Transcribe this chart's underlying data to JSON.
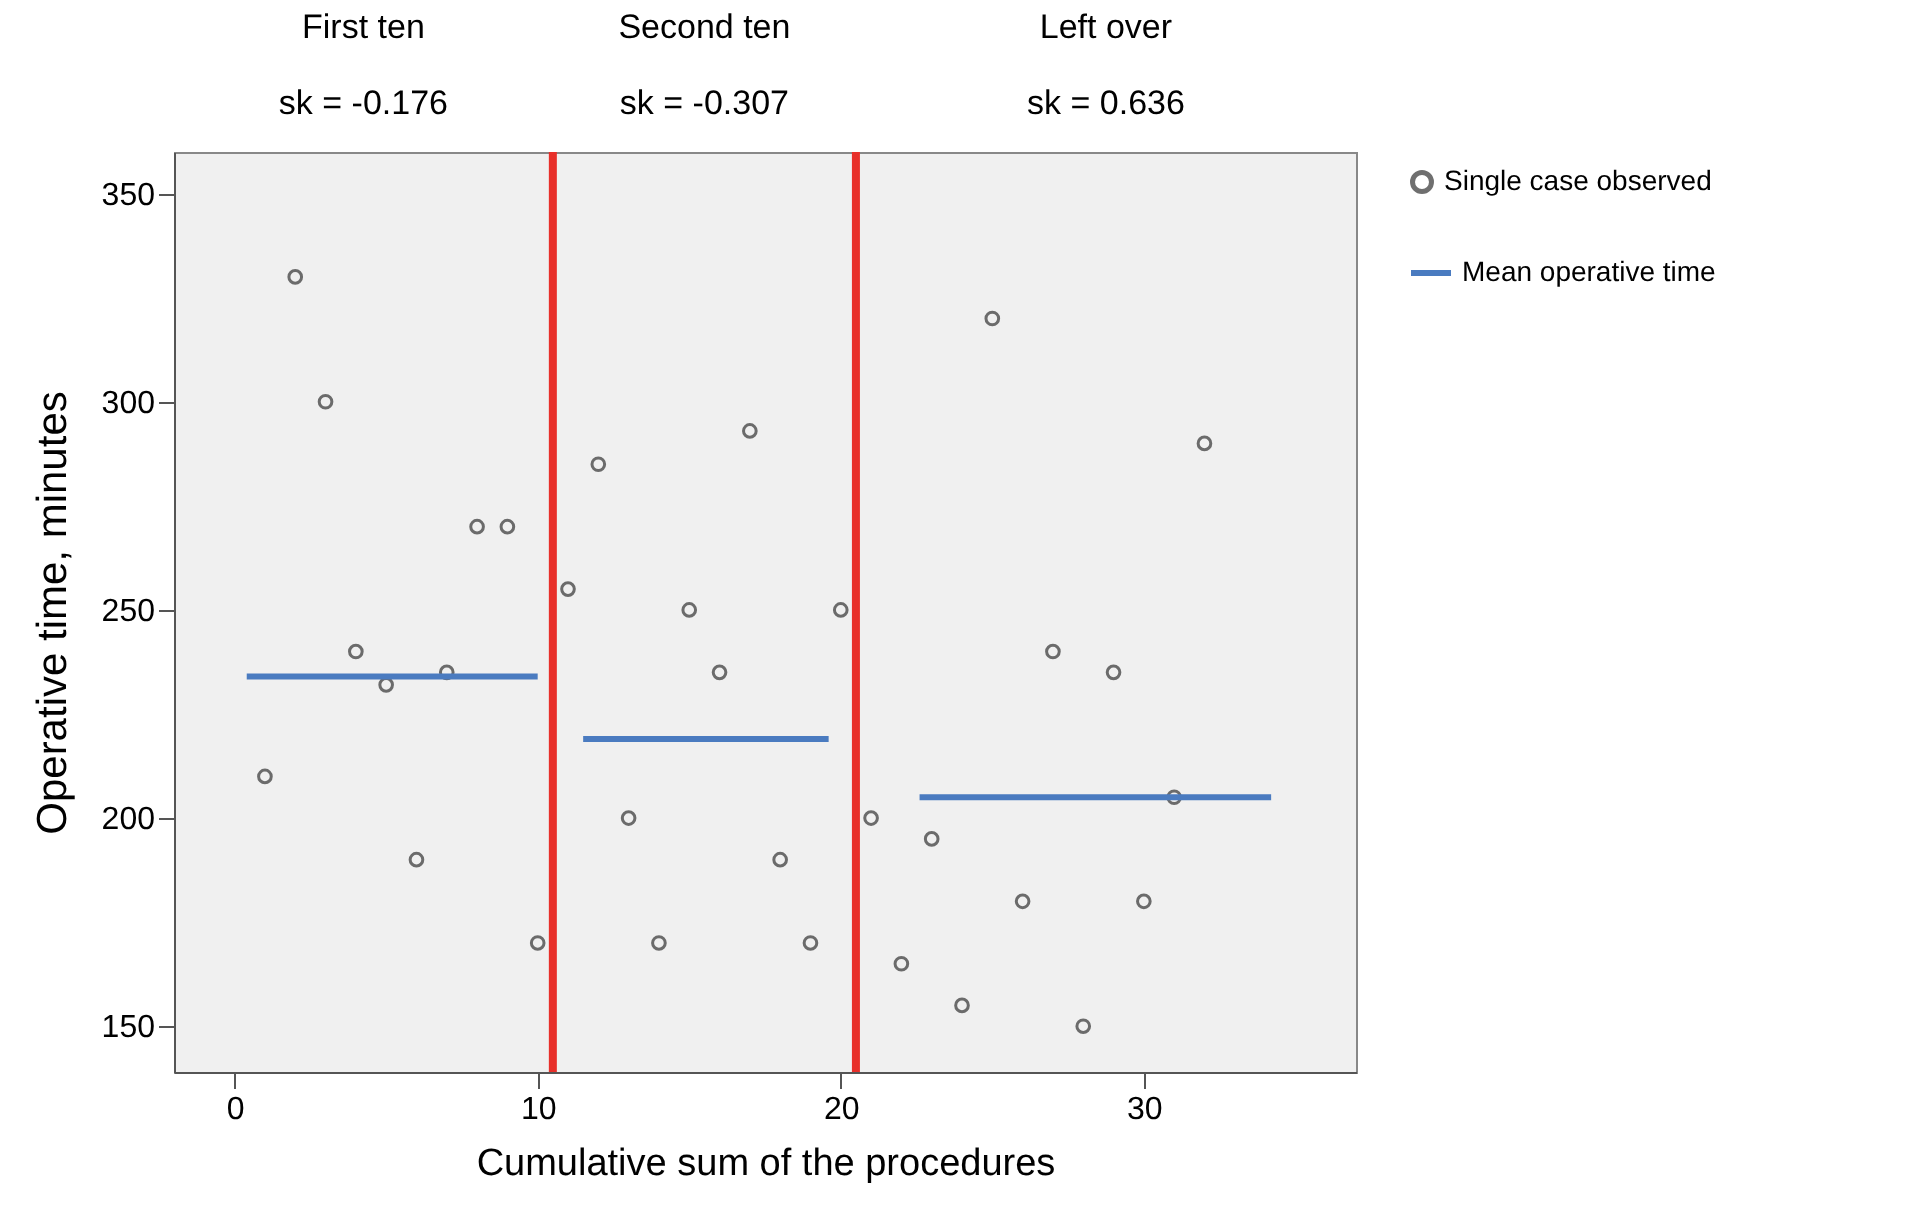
{
  "chart_data": {
    "type": "scatter",
    "xlabel": "Cumulative sum of the procedures",
    "ylabel": "Operative time,  minutes",
    "x": [
      1,
      2,
      3,
      4,
      5,
      6,
      7,
      8,
      9,
      10,
      11,
      12,
      13,
      14,
      15,
      16,
      17,
      18,
      19,
      20,
      21,
      22,
      23,
      24,
      25,
      26,
      27,
      28,
      29,
      30,
      31,
      32
    ],
    "series": [
      {
        "name": "Single case observed",
        "color": "#333333",
        "marker": "circle",
        "values": [
          210,
          330,
          300,
          240,
          232,
          190,
          235,
          270,
          270,
          170,
          255,
          285,
          200,
          170,
          250,
          235,
          293,
          190,
          170,
          250,
          200,
          165,
          195,
          155,
          320,
          180,
          240,
          150,
          235,
          180,
          205,
          290
        ]
      },
      {
        "name": "Mean operative time",
        "type": "line",
        "color": "#4a7bc0",
        "marker": "none",
        "line_style": "solid",
        "x": [
          0.4,
          10,
          10.5,
          11.5,
          19.6,
          20.5,
          22.6,
          34.2
        ],
        "values": [
          234,
          234,
          null,
          219,
          219,
          null,
          205,
          205
        ]
      }
    ],
    "ref_lines": [
      {
        "axis": "x",
        "value": 10.5,
        "color": "#e8302a"
      },
      {
        "axis": "x",
        "value": 20.5,
        "color": "#e8302a"
      }
    ],
    "annotations": [
      "First ten",
      "Second ten",
      "Left over",
      "sk = -0.176",
      "sk = -0.307",
      "sk = 0.636"
    ],
    "xlim": [
      -2,
      37
    ],
    "xticks": [
      0,
      10,
      20,
      30
    ],
    "ylim": [
      139,
      360
    ],
    "yticks": [
      150,
      200,
      250,
      300,
      350
    ],
    "grid": false,
    "legend": "right"
  }
}
